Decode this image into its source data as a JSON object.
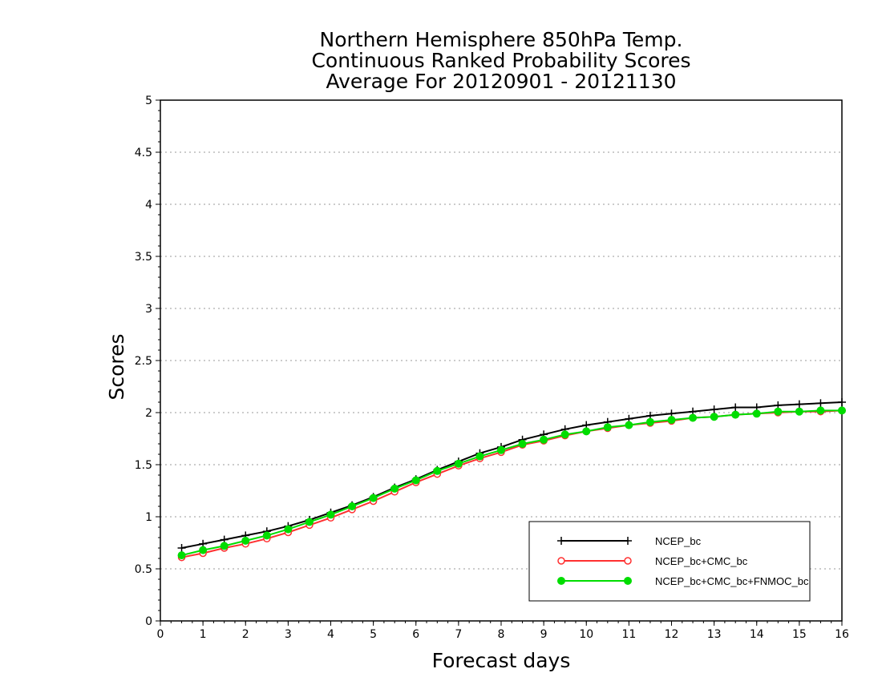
{
  "chart_data": {
    "type": "line",
    "title": [
      "Northern Hemisphere 850hPa Temp.",
      "Continuous Ranked Probability Scores",
      "Average For 20120901 - 20121130"
    ],
    "xlabel": "Forecast days",
    "ylabel": "Scores",
    "xlim": [
      0,
      16
    ],
    "ylim": [
      0,
      5
    ],
    "xticks": [
      0,
      1,
      2,
      3,
      4,
      5,
      6,
      7,
      8,
      9,
      10,
      11,
      12,
      13,
      14,
      15,
      16
    ],
    "yticks": [
      0,
      0.5,
      1,
      1.5,
      2,
      2.5,
      3,
      3.5,
      4,
      4.5,
      5
    ],
    "ytick_labels": [
      "0",
      "0.5",
      "1",
      "1.5",
      "2",
      "2.5",
      "3",
      "3.5",
      "4",
      "4.5",
      "5"
    ],
    "grid": "horizontal dotted",
    "legend_position": "bottom-right",
    "x": [
      0.5,
      1,
      1.5,
      2,
      2.5,
      3,
      3.5,
      4,
      4.5,
      5,
      5.5,
      6,
      6.5,
      7,
      7.5,
      8,
      8.5,
      9,
      9.5,
      10,
      10.5,
      11,
      11.5,
      12,
      12.5,
      13,
      13.5,
      14,
      14.5,
      15,
      15.5,
      16
    ],
    "series": [
      {
        "name": "NCEP_bc",
        "color": "#000000",
        "marker": "plus",
        "values": [
          0.7,
          0.74,
          0.78,
          0.82,
          0.86,
          0.91,
          0.97,
          1.04,
          1.11,
          1.19,
          1.28,
          1.36,
          1.45,
          1.53,
          1.61,
          1.67,
          1.74,
          1.79,
          1.84,
          1.88,
          1.91,
          1.94,
          1.97,
          1.99,
          2.01,
          2.03,
          2.05,
          2.05,
          2.07,
          2.08,
          2.09,
          2.1
        ]
      },
      {
        "name": "NCEP_bc+CMC_bc",
        "color": "#ff3030",
        "marker": "open-circle",
        "values": [
          0.61,
          0.65,
          0.7,
          0.74,
          0.79,
          0.85,
          0.92,
          0.99,
          1.07,
          1.15,
          1.24,
          1.33,
          1.41,
          1.49,
          1.56,
          1.62,
          1.69,
          1.73,
          1.78,
          1.82,
          1.85,
          1.88,
          1.9,
          1.92,
          1.95,
          1.96,
          1.98,
          1.99,
          2.0,
          2.01,
          2.01,
          2.02
        ]
      },
      {
        "name": "NCEP_bc+CMC_bc+FNMOC_bc",
        "color": "#00dd00",
        "marker": "filled-circle",
        "values": [
          0.63,
          0.68,
          0.72,
          0.77,
          0.82,
          0.88,
          0.95,
          1.02,
          1.1,
          1.18,
          1.27,
          1.35,
          1.44,
          1.51,
          1.58,
          1.64,
          1.7,
          1.74,
          1.79,
          1.82,
          1.86,
          1.88,
          1.91,
          1.93,
          1.95,
          1.96,
          1.98,
          1.99,
          2.01,
          2.01,
          2.02,
          2.02
        ]
      }
    ]
  }
}
